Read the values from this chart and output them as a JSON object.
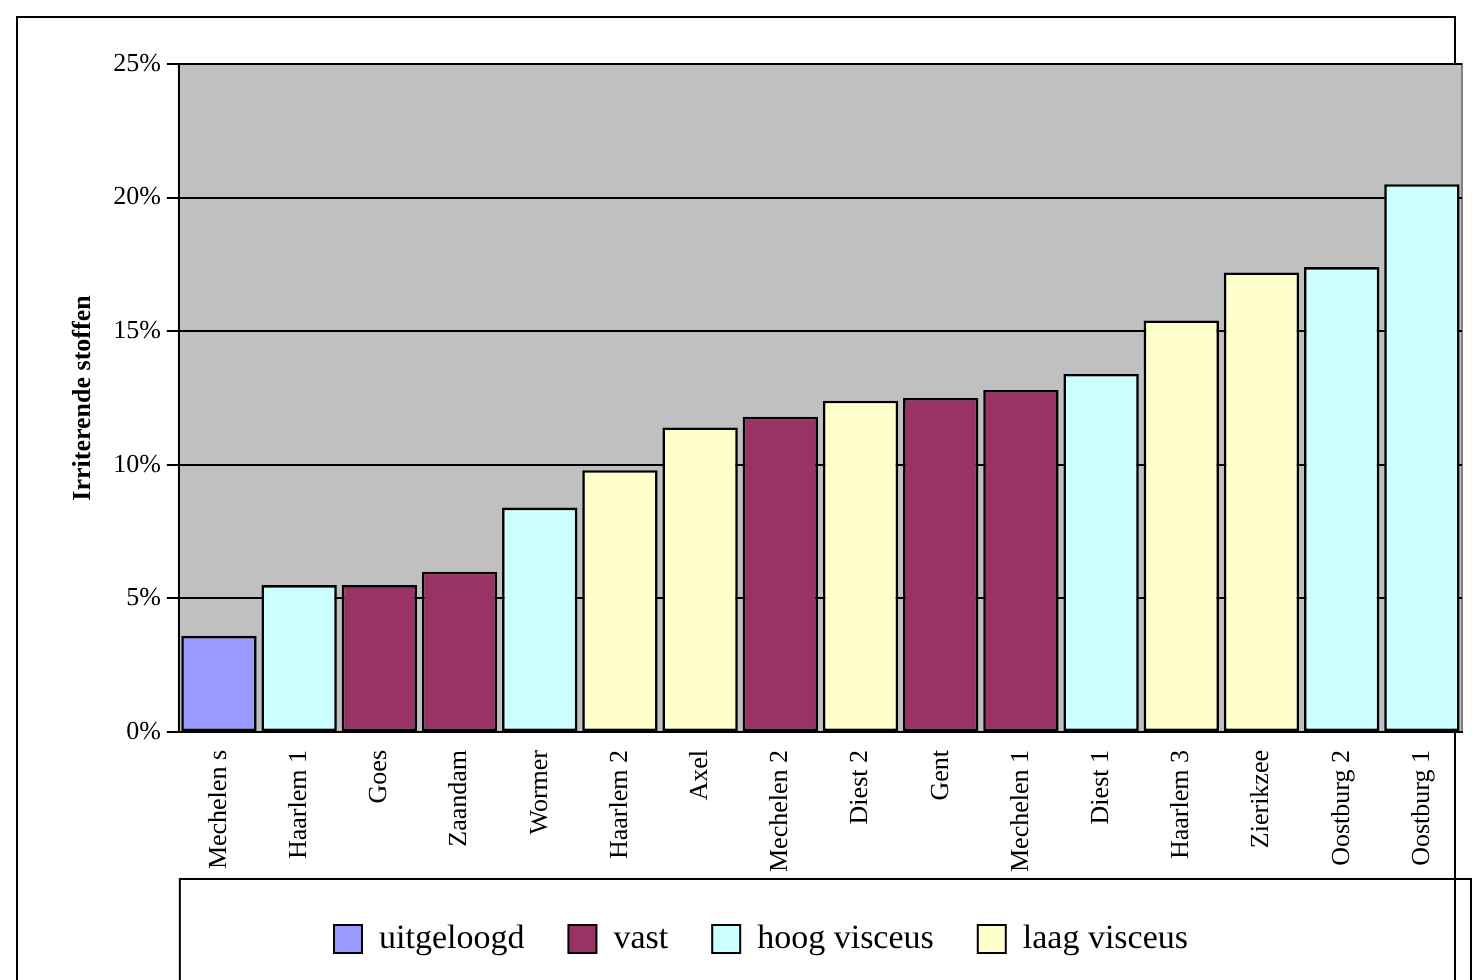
{
  "chart_data": {
    "type": "bar",
    "ylabel": "Irriterende stoffen",
    "stacked": true,
    "grid": "y",
    "legend": "bottom",
    "categories": [
      "Mechelen s",
      "Haarlem 1",
      "Goes",
      "Zaandam",
      "Wormer",
      "Haarlem 2",
      "Axel",
      "Mechelen 2",
      "Diest 2",
      "Gent",
      "Mechelen 1",
      "Diest 1",
      "Haarlem 3",
      "Zierikzee",
      "Oostburg 2",
      "Oostburg 1"
    ],
    "series": [
      {
        "name": "uitgeloogd",
        "color": "#9999ff",
        "values": [
          3.6,
          null,
          null,
          null,
          null,
          null,
          null,
          null,
          null,
          null,
          null,
          null,
          null,
          null,
          null,
          null
        ]
      },
      {
        "name": "vast",
        "color": "#993366",
        "values": [
          null,
          null,
          5.5,
          6.0,
          null,
          null,
          null,
          11.8,
          null,
          12.5,
          12.8,
          null,
          null,
          null,
          null,
          null
        ]
      },
      {
        "name": "hoog visceus",
        "color": "#ccffff",
        "values": [
          null,
          5.5,
          null,
          null,
          8.4,
          null,
          null,
          null,
          null,
          null,
          null,
          13.4,
          null,
          null,
          17.4,
          20.5
        ]
      },
      {
        "name": "laag visceus",
        "color": "#ffffcc",
        "values": [
          null,
          null,
          null,
          null,
          null,
          9.8,
          11.4,
          null,
          12.4,
          null,
          null,
          null,
          15.4,
          17.2,
          null,
          null
        ]
      }
    ],
    "ylim": [
      0,
      25
    ],
    "yticks": [
      {
        "value": 0,
        "label": "0%"
      },
      {
        "value": 5,
        "label": "5%"
      },
      {
        "value": 10,
        "label": "10%"
      },
      {
        "value": 15,
        "label": "15%"
      },
      {
        "value": 20,
        "label": "20%"
      },
      {
        "value": 25,
        "label": "25%"
      }
    ]
  }
}
